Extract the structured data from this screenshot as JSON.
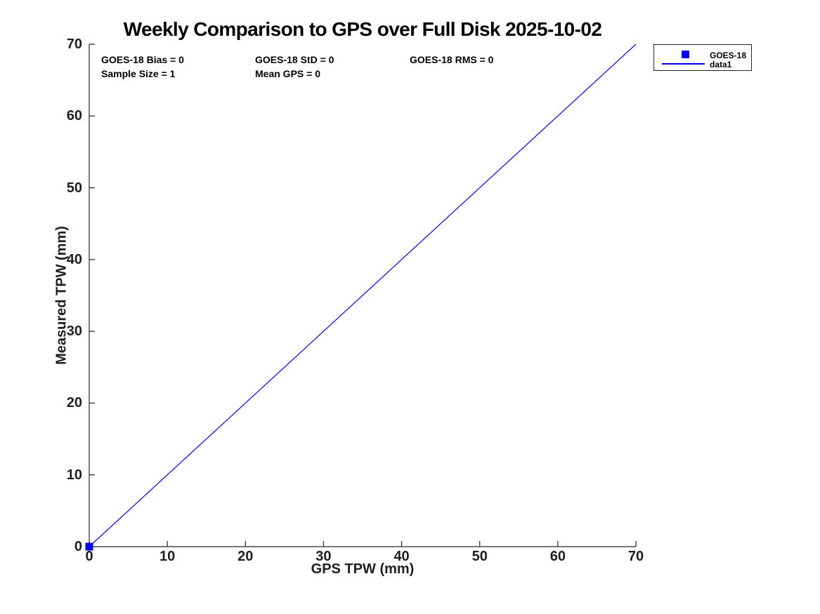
{
  "chart_data": {
    "type": "scatter",
    "title": "Weekly Comparison to GPS over Full Disk 2025-10-02",
    "xlabel": "GPS TPW (mm)",
    "ylabel": "Measured TPW (mm)",
    "xlim": [
      0,
      70
    ],
    "ylim": [
      0,
      70
    ],
    "xticks": [
      0,
      10,
      20,
      30,
      40,
      50,
      60,
      70
    ],
    "yticks": [
      0,
      10,
      20,
      30,
      40,
      50,
      60,
      70
    ],
    "grid": false,
    "legend_position": "outside-top-right",
    "series": [
      {
        "name": "GOES-18",
        "type": "scatter",
        "marker": "square",
        "color": "#0000EE",
        "points": [
          [
            0,
            0
          ]
        ]
      },
      {
        "name": "data1",
        "type": "line",
        "color": "#0000EE",
        "points": [
          [
            0,
            0
          ],
          [
            70,
            70
          ]
        ]
      }
    ],
    "annotations": {
      "bias": "GOES-18 Bias = 0",
      "std": "GOES-18 StD = 0",
      "rms": "GOES-18 RMS = 0",
      "sample_size": "Sample Size = 1",
      "mean_gps": "Mean GPS = 0"
    }
  },
  "colors": {
    "series_blue": "#0000EE",
    "axis": "#262626",
    "text": "#000000",
    "background": "#ffffff"
  }
}
